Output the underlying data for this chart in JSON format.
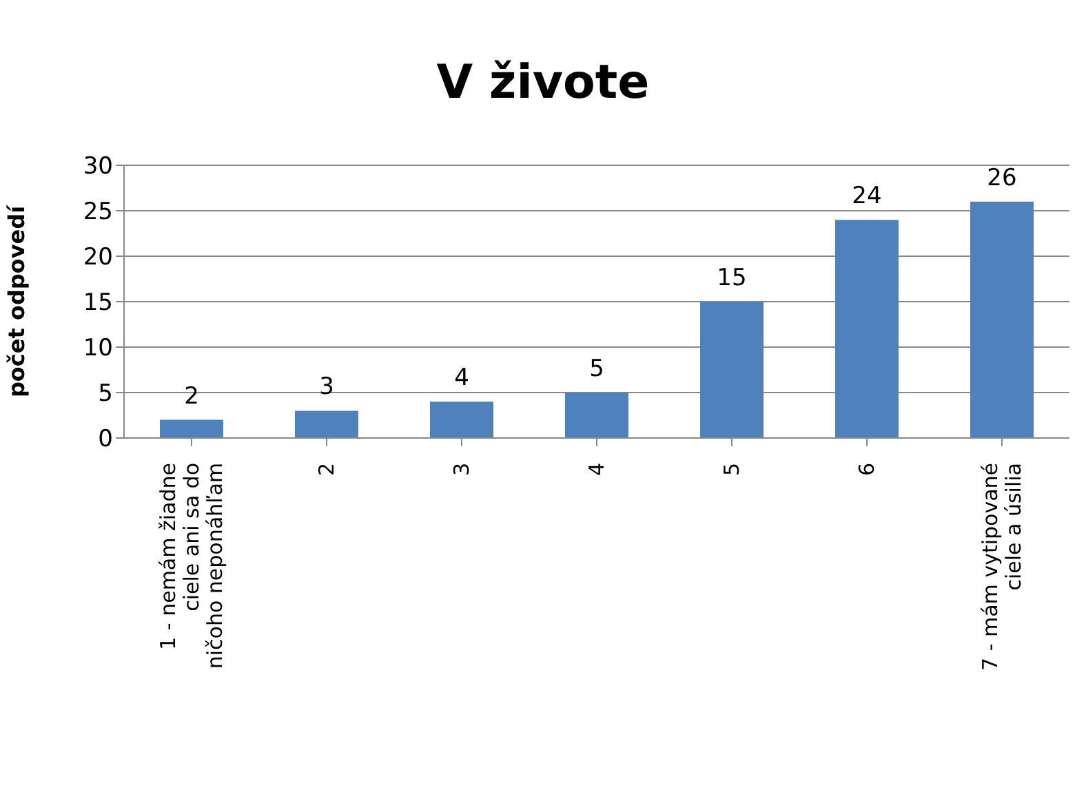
{
  "chart_data": {
    "type": "bar",
    "title": "V živote",
    "ylabel": "počet odpovedí",
    "categories": [
      "1 - nemám žiadne ciele ani sa do ničoho neponáhľam",
      "2",
      "3",
      "4",
      "5",
      "6",
      "7 - mám vytipované ciele a úsilia"
    ],
    "values": [
      2,
      3,
      4,
      5,
      15,
      24,
      26
    ],
    "color": "#4f81bd",
    "ylim": [
      0,
      30
    ],
    "yticks": [
      0,
      5,
      10,
      15,
      20,
      25,
      30
    ],
    "grid": "y",
    "data_labels": true,
    "legend": false
  }
}
